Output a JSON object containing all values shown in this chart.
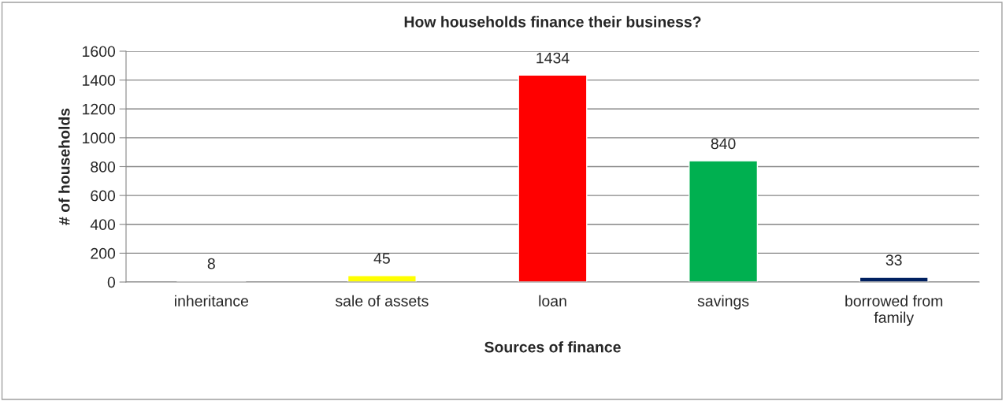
{
  "chart_data": {
    "type": "bar",
    "title": "How households finance their business?",
    "xlabel": "Sources of finance",
    "ylabel": "# of households",
    "categories": [
      "inheritance",
      "sale of assets",
      "loan",
      "savings",
      "borrowed from\nfamily"
    ],
    "values": [
      8,
      45,
      1434,
      840,
      33
    ],
    "colors": [
      "#4f81bd",
      "#ffff00",
      "#ff0000",
      "#00b050",
      "#002060"
    ],
    "ylim": [
      0,
      1600
    ],
    "yticks": [
      0,
      200,
      400,
      600,
      800,
      1000,
      1200,
      1400,
      1600
    ],
    "grid": "y",
    "data_labels": true
  }
}
